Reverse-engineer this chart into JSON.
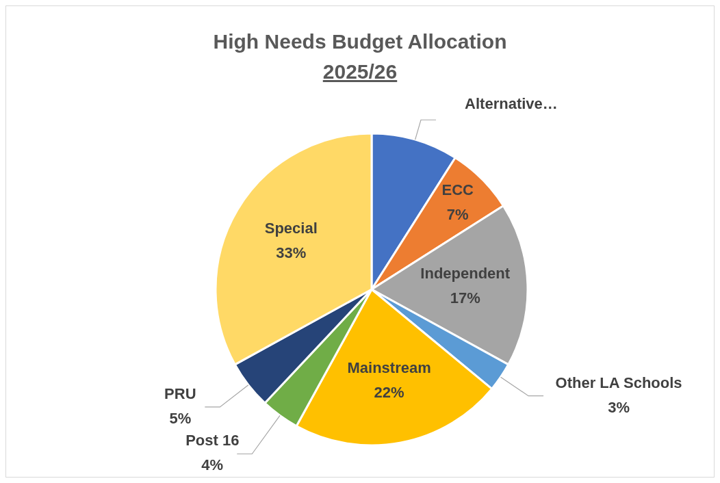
{
  "chart_data": {
    "type": "pie",
    "title": "High Needs Budget Allocation",
    "subtitle": "2025/26",
    "categories": [
      "Alternative…",
      "ECC",
      "Independent",
      "Other LA Schools",
      "Mainstream",
      "Post 16",
      "PRU",
      "Special"
    ],
    "values": [
      9,
      7,
      17,
      3,
      22,
      4,
      5,
      33
    ],
    "value_labels": [
      null,
      "7%",
      "17%",
      "3%",
      "22%",
      "4%",
      "5%",
      "33%"
    ],
    "colors": [
      "#4472c4",
      "#ed7d31",
      "#a5a5a5",
      "#5b9bd5",
      "#ffc000",
      "#70ad47",
      "#264478",
      "#ffd966"
    ],
    "legend": false
  }
}
